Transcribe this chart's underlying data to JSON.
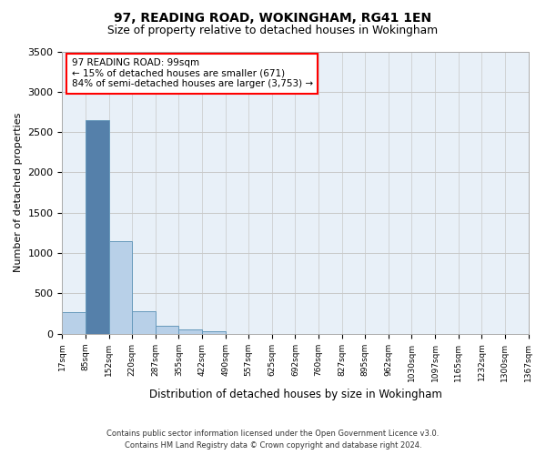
{
  "title": "97, READING ROAD, WOKINGHAM, RG41 1EN",
  "subtitle": "Size of property relative to detached houses in Wokingham",
  "xlabel": "Distribution of detached houses by size in Wokingham",
  "ylabel": "Number of detached properties",
  "bar_color": "#b8d0e8",
  "bar_edge_color": "#6699bb",
  "background_color": "#e8f0f8",
  "grid_color": "#c8c8c8",
  "tick_labels": [
    "17sqm",
    "85sqm",
    "152sqm",
    "220sqm",
    "287sqm",
    "355sqm",
    "422sqm",
    "490sqm",
    "557sqm",
    "625sqm",
    "692sqm",
    "760sqm",
    "827sqm",
    "895sqm",
    "962sqm",
    "1030sqm",
    "1097sqm",
    "1165sqm",
    "1232sqm",
    "1300sqm",
    "1367sqm"
  ],
  "values": [
    270,
    2650,
    1150,
    280,
    100,
    50,
    30,
    0,
    0,
    0,
    0,
    0,
    0,
    0,
    0,
    0,
    0,
    0,
    0,
    0
  ],
  "ylim": [
    0,
    3500
  ],
  "yticks": [
    0,
    500,
    1000,
    1500,
    2000,
    2500,
    3000,
    3500
  ],
  "annotation_line1": "97 READING ROAD: 99sqm",
  "annotation_line2": "← 15% of detached houses are smaller (671)",
  "annotation_line3": "84% of semi-detached houses are larger (3,753) →",
  "highlight_bar_index": 1,
  "highlight_bar_color": "#5580aa",
  "footnote1": "Contains HM Land Registry data © Crown copyright and database right 2024.",
  "footnote2": "Contains public sector information licensed under the Open Government Licence v3.0."
}
